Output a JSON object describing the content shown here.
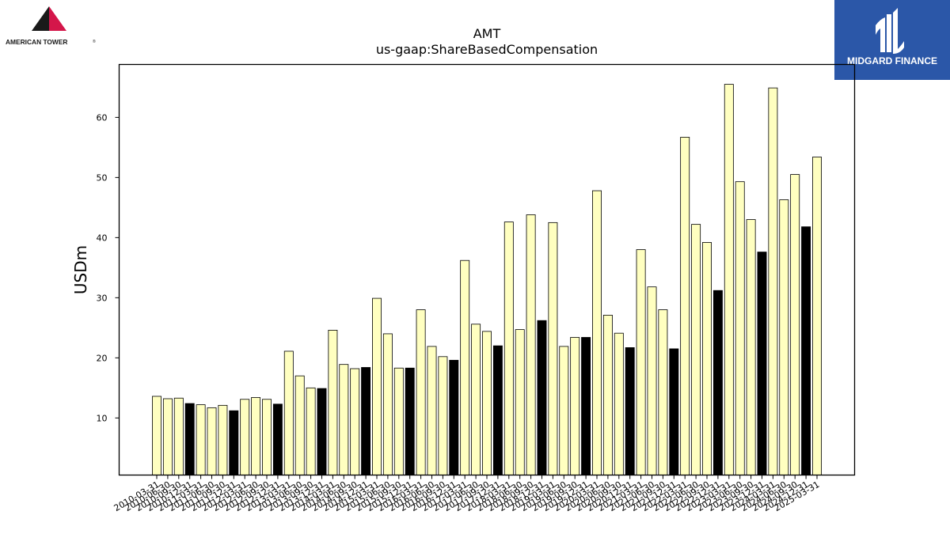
{
  "logos": {
    "left": {
      "text": "AMERICAN TOWER",
      "reg": "®",
      "colors": {
        "dark": "#1a1a1a",
        "accent": "#d4164a"
      }
    },
    "right": {
      "text": "MIDGARD FINANCE",
      "background": "#2b57a8"
    }
  },
  "chart_data": {
    "type": "bar",
    "title": "AMT",
    "subtitle": "us-gaap:ShareBasedCompensation",
    "xlabel": "",
    "ylabel": "USDm",
    "ylim": [
      0.5,
      68.8
    ],
    "yticks": [
      10,
      20,
      30,
      40,
      50,
      60
    ],
    "grid": false,
    "colors": {
      "quarter": "#ffffc0",
      "year_end": "#000000",
      "edge": "#000000"
    },
    "categories": [
      "2010-03-31",
      "2010-06-30",
      "2010-09-30",
      "2010-12-31",
      "2011-03-31",
      "2011-06-30",
      "2011-09-30",
      "2011-12-31",
      "2012-03-31",
      "2012-06-30",
      "2012-09-30",
      "2012-12-31",
      "2013-03-31",
      "2013-06-30",
      "2013-09-30",
      "2013-12-31",
      "2014-03-31",
      "2014-06-30",
      "2014-09-30",
      "2014-12-31",
      "2015-03-31",
      "2015-06-30",
      "2015-09-30",
      "2015-12-31",
      "2016-03-31",
      "2016-06-30",
      "2016-09-30",
      "2016-12-31",
      "2017-03-31",
      "2017-06-30",
      "2017-09-30",
      "2017-12-31",
      "2018-03-31",
      "2018-06-30",
      "2018-09-30",
      "2018-12-31",
      "2019-03-31",
      "2019-06-30",
      "2019-09-30",
      "2019-12-31",
      "2020-03-31",
      "2020-06-30",
      "2020-09-30",
      "2020-12-31",
      "2021-03-31",
      "2021-06-30",
      "2021-09-30",
      "2021-12-31",
      "2022-03-31",
      "2022-06-30",
      "2022-09-30",
      "2022-12-31",
      "2023-03-31",
      "2023-06-30",
      "2023-09-30",
      "2023-12-31",
      "2024-03-31",
      "2024-06-30",
      "2024-09-30",
      "2024-12-31",
      "2025-03-31"
    ],
    "values": [
      13.6,
      13.2,
      13.3,
      12.4,
      12.2,
      11.7,
      12.1,
      11.2,
      13.1,
      13.4,
      13.1,
      12.3,
      21.1,
      17.0,
      15.0,
      14.9,
      24.6,
      18.9,
      18.2,
      18.4,
      29.9,
      24.0,
      18.3,
      18.3,
      28.0,
      21.9,
      20.2,
      19.6,
      36.2,
      25.6,
      24.4,
      22.0,
      42.6,
      24.7,
      43.8,
      26.2,
      42.5,
      21.9,
      23.4,
      23.4,
      47.8,
      27.1,
      24.1,
      21.7,
      38.0,
      31.8,
      28.0,
      21.5,
      56.7,
      42.2,
      39.2,
      31.2,
      65.5,
      49.3,
      43.0,
      37.6,
      64.9,
      46.3,
      50.5,
      41.8,
      53.4
    ],
    "year_end": [
      false,
      false,
      false,
      true,
      false,
      false,
      false,
      true,
      false,
      false,
      false,
      true,
      false,
      false,
      false,
      true,
      false,
      false,
      false,
      true,
      false,
      false,
      false,
      true,
      false,
      false,
      false,
      true,
      false,
      false,
      false,
      true,
      false,
      false,
      false,
      true,
      false,
      false,
      false,
      true,
      false,
      false,
      false,
      true,
      false,
      false,
      false,
      true,
      false,
      false,
      false,
      true,
      false,
      false,
      false,
      true,
      false,
      false,
      false,
      true,
      false
    ]
  }
}
